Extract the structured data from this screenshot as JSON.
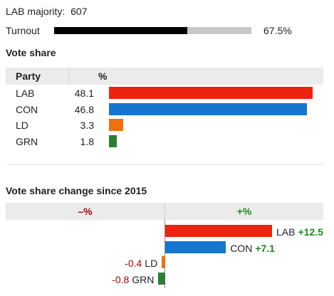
{
  "summary": {
    "majority_label": "LAB majority:",
    "majority_value": "607",
    "turnout_label": "Turnout",
    "turnout_value": "67.5%",
    "turnout_fraction": 0.675,
    "turnout_fill": "#000000",
    "turnout_track": "#c8c8c8"
  },
  "vote_share": {
    "title": "Vote share",
    "col_party": "Party",
    "col_pct": "%",
    "rows": [
      {
        "party": "LAB",
        "value": 48.1,
        "display": "48.1",
        "color": "#ee2211"
      },
      {
        "party": "CON",
        "value": 46.8,
        "display": "46.8",
        "color": "#1476d0"
      },
      {
        "party": "LD",
        "value": 3.3,
        "display": "3.3",
        "color": "#ee7011"
      },
      {
        "party": "GRN",
        "value": 1.8,
        "display": "1.8",
        "color": "#2e7d32"
      }
    ]
  },
  "change": {
    "title": "Vote share change since 2015",
    "neg_header": "–%",
    "pos_header": "+%",
    "neg_color": "#b00000",
    "pos_color": "#1a8a1a",
    "rows": [
      {
        "party": "LAB",
        "value": 12.5,
        "display": "+12.5",
        "color": "#ee2211"
      },
      {
        "party": "CON",
        "value": 7.1,
        "display": "+7.1",
        "color": "#1476d0"
      },
      {
        "party": "LD",
        "value": -0.4,
        "display": "-0.4",
        "color": "#ee7011"
      },
      {
        "party": "GRN",
        "value": -0.8,
        "display": "-0.8",
        "color": "#2e7d32"
      }
    ]
  }
}
